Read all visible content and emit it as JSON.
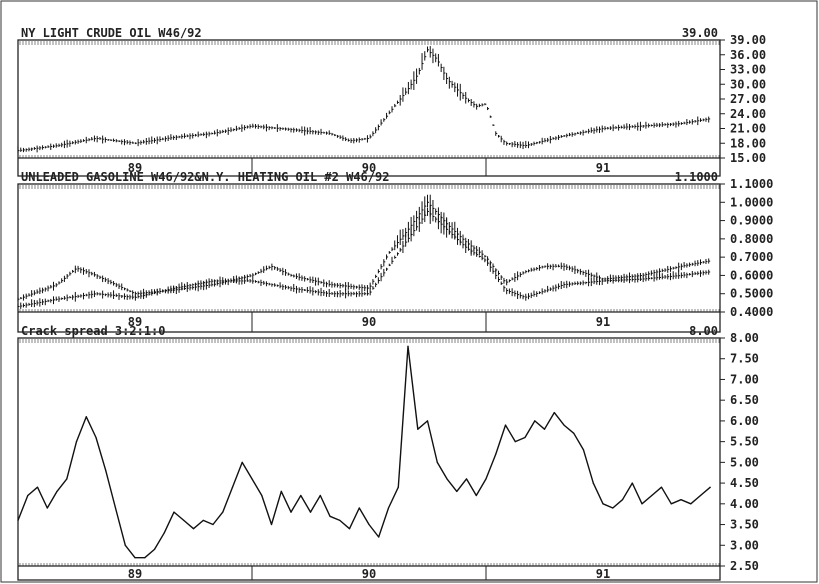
{
  "chart_data": [
    {
      "type": "line",
      "style": "ohlc-bars",
      "title": "NY LIGHT CRUDE OIL W46/92",
      "corner_value": "39.00",
      "ylim": [
        15,
        39
      ],
      "yticks": [
        "39.00",
        "36.00",
        "33.00",
        "30.00",
        "27.00",
        "24.00",
        "21.00",
        "18.00",
        "15.00"
      ],
      "xlim": [
        0,
        36
      ],
      "x_tick_labels": [
        {
          "x": 6,
          "label": "89"
        },
        {
          "x": 18,
          "label": "90"
        },
        {
          "x": 30,
          "label": "91"
        }
      ],
      "x_dividers": [
        12,
        24
      ],
      "series": [
        {
          "x": [
            0,
            2,
            4,
            6,
            8,
            10,
            12,
            14,
            16,
            17,
            18,
            19,
            20,
            20.5,
            21,
            21.5,
            22,
            22.5,
            23,
            23.5,
            24,
            24.5,
            25,
            26,
            28,
            30,
            32,
            34,
            35.5
          ],
          "values": [
            16.5,
            17.5,
            19,
            18,
            19.2,
            20,
            21.5,
            20.8,
            20,
            18.5,
            19,
            24,
            29,
            32,
            37,
            35,
            31,
            29,
            27,
            25.5,
            26,
            20,
            18,
            17.5,
            19.5,
            21,
            21.5,
            22,
            23
          ]
        }
      ]
    },
    {
      "type": "line",
      "style": "ohlc-bars",
      "title": "UNLEADED GASOLINE W46/92&N.Y. HEATING OIL #2 W46/92",
      "corner_value": "1.1000",
      "ylim": [
        0.4,
        1.1
      ],
      "yticks": [
        "1.1000",
        "1.0000",
        "0.9000",
        "0.8000",
        "0.7000",
        "0.6000",
        "0.5000",
        "0.4000"
      ],
      "xlim": [
        0,
        36
      ],
      "x_tick_labels": [
        {
          "x": 6,
          "label": "89"
        },
        {
          "x": 18,
          "label": "90"
        },
        {
          "x": 30,
          "label": "91"
        }
      ],
      "x_dividers": [
        12,
        24
      ],
      "series": [
        {
          "x": [
            0,
            2,
            3,
            4,
            6,
            8,
            10,
            12,
            13,
            14,
            16,
            18,
            19,
            20,
            21,
            22,
            23,
            24,
            25,
            26,
            27,
            28,
            30,
            32,
            34,
            35.5
          ],
          "values": [
            0.47,
            0.55,
            0.64,
            0.6,
            0.5,
            0.52,
            0.55,
            0.6,
            0.65,
            0.6,
            0.55,
            0.53,
            0.72,
            0.85,
            1.0,
            0.88,
            0.78,
            0.7,
            0.56,
            0.62,
            0.65,
            0.65,
            0.58,
            0.6,
            0.65,
            0.68
          ]
        },
        {
          "x": [
            0,
            2,
            4,
            6,
            8,
            10,
            12,
            14,
            16,
            18,
            19,
            20,
            21,
            22,
            23,
            24,
            25,
            26,
            28,
            30,
            32,
            34,
            35.5
          ],
          "values": [
            0.43,
            0.47,
            0.5,
            0.48,
            0.53,
            0.57,
            0.57,
            0.53,
            0.5,
            0.5,
            0.65,
            0.8,
            0.95,
            0.85,
            0.75,
            0.68,
            0.52,
            0.48,
            0.55,
            0.57,
            0.58,
            0.6,
            0.62
          ]
        }
      ]
    },
    {
      "type": "line",
      "title": "Crack spread 3:2:1:0",
      "corner_value": "8.00",
      "ylim": [
        2.5,
        8
      ],
      "yticks": [
        "8.00",
        "7.50",
        "7.00",
        "6.50",
        "6.00",
        "5.50",
        "5.00",
        "4.50",
        "4.00",
        "3.50",
        "3.00",
        "2.50"
      ],
      "xlim": [
        0,
        36
      ],
      "x_tick_labels": [
        {
          "x": 6,
          "label": "89"
        },
        {
          "x": 18,
          "label": "90"
        },
        {
          "x": 30,
          "label": "91"
        }
      ],
      "x_dividers": [
        12,
        24
      ],
      "series": [
        {
          "x": [
            0,
            0.5,
            1,
            1.5,
            2,
            2.5,
            3,
            3.5,
            4,
            4.5,
            5,
            5.5,
            6,
            6.5,
            7,
            7.5,
            8,
            8.5,
            9,
            9.5,
            10,
            10.5,
            11,
            11.5,
            12,
            12.5,
            13,
            13.5,
            14,
            14.5,
            15,
            15.5,
            16,
            16.5,
            17,
            17.5,
            18,
            18.5,
            19,
            19.5,
            20,
            20.5,
            21,
            21.5,
            22,
            22.5,
            23,
            23.5,
            24,
            24.5,
            25,
            25.5,
            26,
            26.5,
            27,
            27.5,
            28,
            28.5,
            29,
            29.5,
            30,
            30.5,
            31,
            31.5,
            32,
            32.5,
            33,
            33.5,
            34,
            34.5,
            35,
            35.5
          ],
          "values": [
            3.6,
            4.2,
            4.4,
            3.9,
            4.3,
            4.6,
            5.5,
            6.1,
            5.6,
            4.8,
            3.9,
            3.0,
            2.7,
            2.7,
            2.9,
            3.3,
            3.8,
            3.6,
            3.4,
            3.6,
            3.5,
            3.8,
            4.4,
            5.0,
            4.6,
            4.2,
            3.5,
            4.3,
            3.8,
            4.2,
            3.8,
            4.2,
            3.7,
            3.6,
            3.4,
            3.9,
            3.5,
            3.2,
            3.9,
            4.4,
            7.8,
            5.8,
            6.0,
            5.0,
            4.6,
            4.3,
            4.6,
            4.2,
            4.6,
            5.2,
            5.9,
            5.5,
            5.6,
            6.0,
            5.8,
            6.2,
            5.9,
            5.7,
            5.3,
            4.5,
            4.0,
            3.9,
            4.1,
            4.5,
            4.0,
            4.2,
            4.4,
            4.0,
            4.1,
            4.0,
            4.2,
            4.4
          ]
        }
      ]
    }
  ]
}
